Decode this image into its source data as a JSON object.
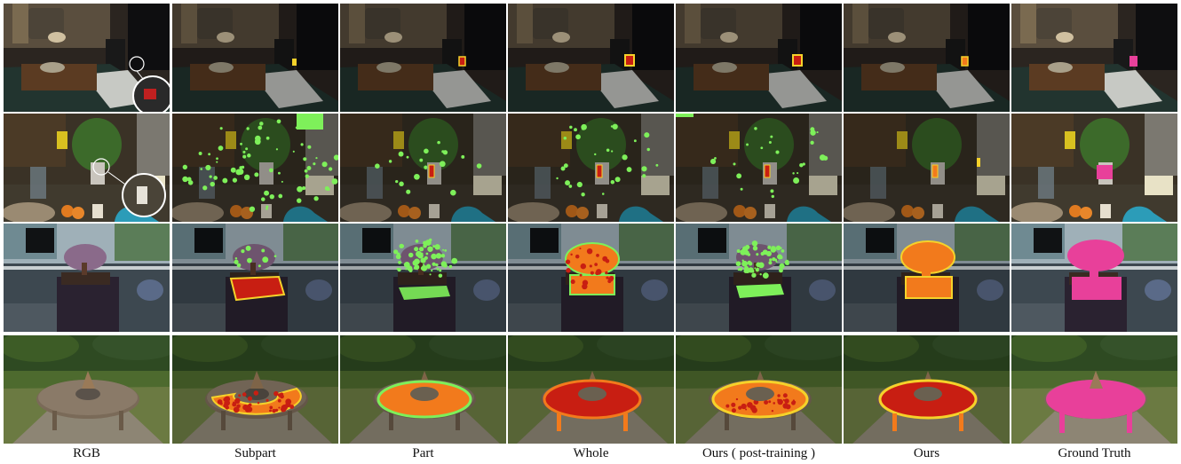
{
  "columns": [
    {
      "key": "rgb",
      "label": "RGB"
    },
    {
      "key": "subpart",
      "label": "Subpart"
    },
    {
      "key": "part",
      "label": "Part"
    },
    {
      "key": "whole",
      "label": "Whole"
    },
    {
      "key": "ours_post",
      "label": "Ours ( post-training )"
    },
    {
      "key": "ours",
      "label": "Ours"
    },
    {
      "key": "gt",
      "label": "Ground Truth"
    }
  ],
  "rows": [
    {
      "scene": "living-room",
      "target": "small red object"
    },
    {
      "scene": "kitchen-counter",
      "target": "white object"
    },
    {
      "scene": "office-bonsai",
      "target": "bonsai tree"
    },
    {
      "scene": "garden-table",
      "target": "round table"
    }
  ],
  "colors": {
    "mask_pink": "#e8409a",
    "heat_red": "#c81e12",
    "heat_orange": "#f27a1c",
    "heat_yellow": "#f5d22a",
    "heat_green": "#7ef05a"
  }
}
